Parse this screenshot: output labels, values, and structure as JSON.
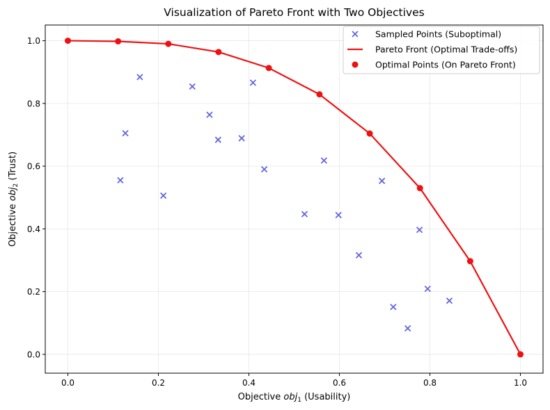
{
  "chart_data": {
    "type": "scatter",
    "title": "Visualization of Pareto Front with Two Objectives",
    "xlabel": {
      "prefix": "Objective ",
      "var": "obj",
      "sub": "1",
      "suffix": " (Usability)"
    },
    "ylabel": {
      "prefix": "Objective ",
      "var": "obj",
      "sub": "2",
      "suffix": " (Trust)"
    },
    "xlim": [
      -0.05,
      1.05
    ],
    "ylim": [
      -0.06,
      1.05
    ],
    "xticks": [
      0.0,
      0.2,
      0.4,
      0.6,
      0.8,
      1.0
    ],
    "yticks": [
      0.0,
      0.2,
      0.4,
      0.6,
      0.8,
      1.0
    ],
    "xtick_labels": [
      "0.0",
      "0.2",
      "0.4",
      "0.6",
      "0.8",
      "1.0"
    ],
    "ytick_labels": [
      "0.0",
      "0.2",
      "0.4",
      "0.6",
      "0.8",
      "1.0"
    ],
    "grid": true,
    "legend_position": "top-right",
    "series": [
      {
        "name": "Sampled Points (Suboptimal)",
        "kind": "scatter",
        "marker": "x",
        "color": "#5555dd",
        "points": [
          [
            0.116,
            0.555
          ],
          [
            0.127,
            0.705
          ],
          [
            0.159,
            0.884
          ],
          [
            0.211,
            0.506
          ],
          [
            0.275,
            0.854
          ],
          [
            0.313,
            0.764
          ],
          [
            0.332,
            0.684
          ],
          [
            0.384,
            0.689
          ],
          [
            0.409,
            0.866
          ],
          [
            0.434,
            0.59
          ],
          [
            0.523,
            0.447
          ],
          [
            0.566,
            0.618
          ],
          [
            0.598,
            0.444
          ],
          [
            0.643,
            0.316
          ],
          [
            0.694,
            0.553
          ],
          [
            0.719,
            0.151
          ],
          [
            0.751,
            0.083
          ],
          [
            0.777,
            0.397
          ],
          [
            0.795,
            0.209
          ],
          [
            0.843,
            0.171
          ]
        ]
      },
      {
        "name": "Pareto Front (Optimal Trade-offs)",
        "kind": "line",
        "color": "#ee1111",
        "points": [
          [
            0.0,
            1.0
          ],
          [
            0.111,
            0.998
          ],
          [
            0.222,
            0.99
          ],
          [
            0.333,
            0.964
          ],
          [
            0.444,
            0.913
          ],
          [
            0.556,
            0.829
          ],
          [
            0.667,
            0.704
          ],
          [
            0.778,
            0.53
          ],
          [
            0.889,
            0.297
          ],
          [
            1.0,
            0.0
          ]
        ]
      },
      {
        "name": "Optimal Points (On Pareto Front)",
        "kind": "scatter",
        "marker": "o",
        "color": "#ee1111",
        "points": [
          [
            0.0,
            1.0
          ],
          [
            0.111,
            0.998
          ],
          [
            0.222,
            0.99
          ],
          [
            0.333,
            0.964
          ],
          [
            0.444,
            0.913
          ],
          [
            0.556,
            0.829
          ],
          [
            0.667,
            0.704
          ],
          [
            0.778,
            0.53
          ],
          [
            0.889,
            0.297
          ],
          [
            1.0,
            0.0
          ]
        ]
      }
    ]
  }
}
